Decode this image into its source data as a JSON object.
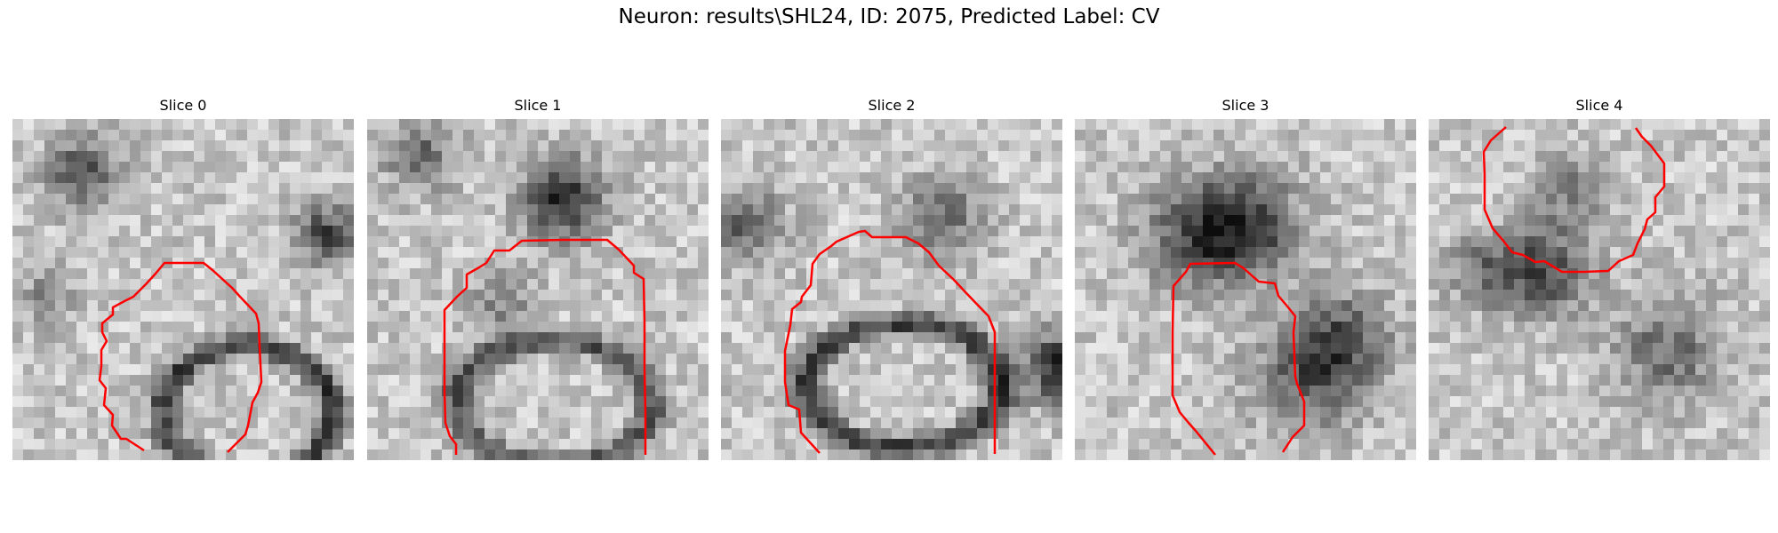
{
  "figure": {
    "title": "Neuron: results\\SHL24, ID: 2075, Predicted Label: CV"
  },
  "overlay_color": "#ff0000",
  "slices": [
    {
      "title": "Slice 0"
    },
    {
      "title": "Slice 1"
    },
    {
      "title": "Slice 2"
    },
    {
      "title": "Slice 3"
    },
    {
      "title": "Slice 4"
    }
  ]
}
